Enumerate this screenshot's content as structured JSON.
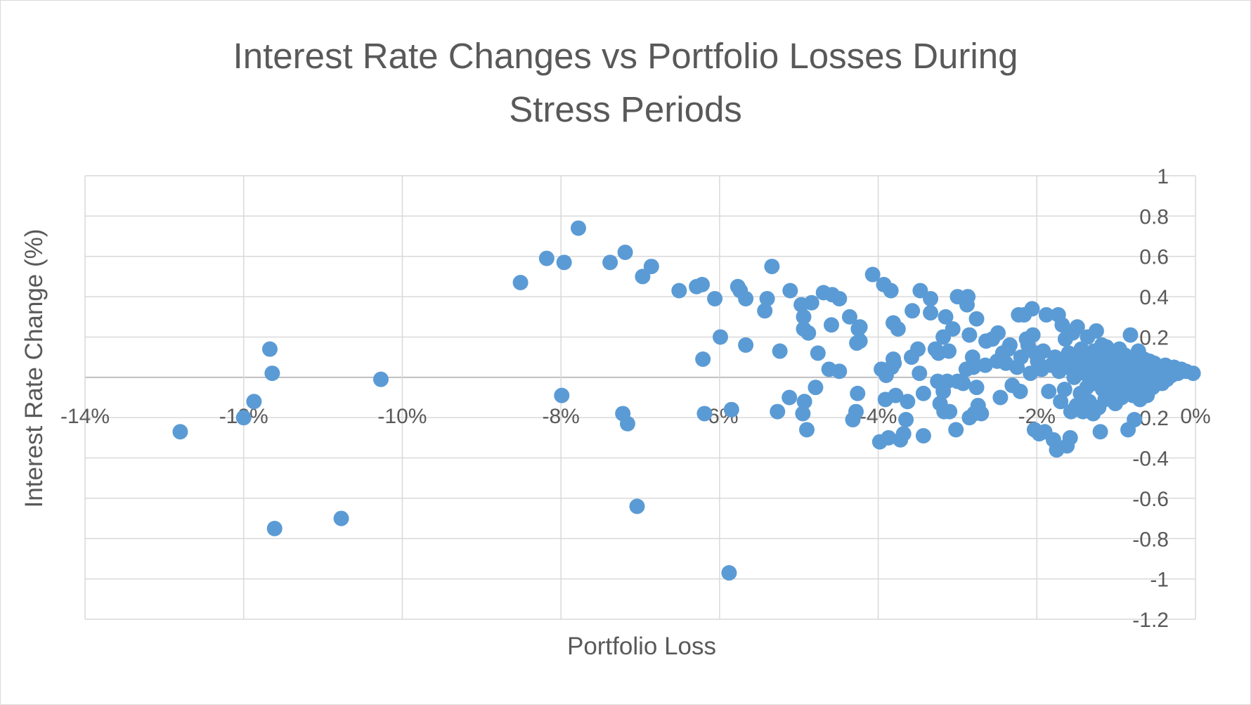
{
  "chart_data": {
    "type": "scatter",
    "title_lines": [
      "Interest Rate Changes vs Portfolio Losses During",
      "Stress Periods"
    ],
    "xlabel": "Portfolio Loss",
    "ylabel": "Interest Rate Change (%)",
    "xlim": [
      -0.14,
      0.0
    ],
    "ylim": [
      -1.2,
      1.0
    ],
    "x_ticks": [
      -0.14,
      -0.12,
      -0.1,
      -0.08,
      -0.06,
      -0.04,
      -0.02,
      0.0
    ],
    "x_tick_labels": [
      "-14%",
      "-12%",
      "-10%",
      "-8%",
      "-6%",
      "-4%",
      "-2%",
      "0%"
    ],
    "y_ticks": [
      1,
      0.8,
      0.6,
      0.4,
      0.2,
      0,
      -0.2,
      -0.4,
      -0.6,
      -0.8,
      -1,
      -1.2
    ],
    "y_tick_labels": [
      "1",
      "0.8",
      "0.6",
      "0.4",
      "0.2",
      "0",
      "-0.2",
      "-0.4",
      "-0.6",
      "-0.8",
      "-1",
      "-1.2"
    ],
    "grid": true,
    "marker_color": "#5b9bd5",
    "points": [
      [
        -0.128,
        -0.27
      ],
      [
        -0.12,
        -0.2
      ],
      [
        -0.1187,
        -0.12
      ],
      [
        -0.1167,
        0.14
      ],
      [
        -0.1164,
        0.02
      ],
      [
        -0.1161,
        -0.75
      ],
      [
        -0.1077,
        -0.7
      ],
      [
        -0.1027,
        -0.01
      ],
      [
        -0.0851,
        0.47
      ],
      [
        -0.0818,
        0.59
      ],
      [
        -0.0799,
        -0.09
      ],
      [
        -0.0796,
        0.57
      ],
      [
        -0.0778,
        0.74
      ],
      [
        -0.0738,
        0.57
      ],
      [
        -0.0722,
        -0.18
      ],
      [
        -0.0719,
        0.62
      ],
      [
        -0.0716,
        -0.23
      ],
      [
        -0.0704,
        -0.64
      ],
      [
        -0.0697,
        0.5
      ],
      [
        -0.0686,
        0.55
      ],
      [
        -0.0651,
        0.43
      ],
      [
        -0.0629,
        0.45
      ],
      [
        -0.0622,
        0.46
      ],
      [
        -0.0621,
        0.09
      ],
      [
        -0.0619,
        -0.18
      ],
      [
        -0.0606,
        0.39
      ],
      [
        -0.0599,
        0.2
      ],
      [
        -0.0588,
        -0.97
      ],
      [
        -0.0585,
        -0.16
      ],
      [
        -0.0577,
        0.45
      ],
      [
        -0.0574,
        0.43
      ],
      [
        -0.0567,
        0.39
      ],
      [
        -0.0567,
        0.16
      ],
      [
        -0.0543,
        0.33
      ],
      [
        -0.054,
        0.39
      ],
      [
        -0.0534,
        0.55
      ],
      [
        -0.0527,
        -0.17
      ],
      [
        -0.0524,
        0.13
      ],
      [
        -0.0512,
        -0.1
      ],
      [
        -0.0511,
        0.43
      ],
      [
        -0.0497,
        0.36
      ],
      [
        -0.0493,
        -0.12
      ],
      [
        -0.0495,
        -0.18
      ],
      [
        -0.0494,
        0.24
      ],
      [
        -0.0494,
        0.3
      ],
      [
        -0.049,
        -0.26
      ],
      [
        -0.0488,
        0.22
      ],
      [
        -0.0484,
        0.37
      ],
      [
        -0.0479,
        -0.05
      ],
      [
        -0.0476,
        0.12
      ],
      [
        -0.0469,
        0.42
      ],
      [
        -0.0462,
        0.04
      ],
      [
        -0.0459,
        0.26
      ],
      [
        -0.0458,
        0.41
      ],
      [
        -0.0449,
        0.39
      ],
      [
        -0.0449,
        0.03
      ],
      [
        -0.0436,
        0.3
      ],
      [
        -0.0432,
        -0.21
      ],
      [
        -0.0428,
        -0.17
      ],
      [
        -0.0427,
        0.17
      ],
      [
        -0.0426,
        -0.08
      ],
      [
        -0.0425,
        0.24
      ],
      [
        -0.0423,
        0.18
      ],
      [
        -0.0423,
        0.25
      ],
      [
        -0.0407,
        0.51
      ],
      [
        -0.0398,
        -0.32
      ],
      [
        -0.0396,
        0.04
      ],
      [
        -0.0393,
        0.46
      ],
      [
        -0.0391,
        -0.11
      ],
      [
        -0.039,
        0.01
      ],
      [
        -0.0387,
        -0.3
      ],
      [
        -0.0384,
        0.43
      ],
      [
        -0.0383,
        0.05
      ],
      [
        -0.0381,
        0.09
      ],
      [
        -0.0381,
        0.27
      ],
      [
        -0.038,
        0.07
      ],
      [
        -0.0378,
        -0.09
      ],
      [
        -0.0375,
        0.24
      ],
      [
        -0.0372,
        -0.31
      ],
      [
        -0.0368,
        -0.28
      ],
      [
        -0.0365,
        -0.21
      ],
      [
        -0.0363,
        -0.12
      ],
      [
        -0.0358,
        0.1
      ],
      [
        -0.0357,
        0.33
      ],
      [
        -0.035,
        0.14
      ],
      [
        -0.0348,
        0.02
      ],
      [
        -0.0347,
        0.43
      ],
      [
        -0.0343,
        -0.08
      ],
      [
        -0.0343,
        -0.29
      ],
      [
        -0.0334,
        0.32
      ],
      [
        -0.0334,
        0.39
      ],
      [
        -0.0328,
        0.14
      ],
      [
        -0.0325,
        -0.02
      ],
      [
        -0.0324,
        0.12
      ],
      [
        -0.0322,
        -0.13
      ],
      [
        -0.0318,
        0.2
      ],
      [
        -0.0318,
        -0.07
      ],
      [
        -0.0317,
        -0.17
      ],
      [
        -0.0315,
        0.3
      ],
      [
        -0.0313,
        -0.02
      ],
      [
        -0.0311,
        0.13
      ],
      [
        -0.031,
        -0.17
      ],
      [
        -0.0306,
        0.24
      ],
      [
        -0.0302,
        -0.26
      ],
      [
        -0.03,
        0.4
      ],
      [
        -0.03,
        -0.02
      ],
      [
        -0.0293,
        -0.03
      ],
      [
        -0.0289,
        0.04
      ],
      [
        -0.0288,
        0.36
      ],
      [
        -0.0287,
        0.4
      ],
      [
        -0.0285,
        0.21
      ],
      [
        -0.0285,
        -0.2
      ],
      [
        -0.0281,
        0.1
      ],
      [
        -0.028,
        0.05
      ],
      [
        -0.0279,
        -0.18
      ],
      [
        -0.0276,
        0.29
      ],
      [
        -0.0276,
        -0.05
      ],
      [
        -0.0274,
        -0.14
      ],
      [
        -0.027,
        -0.18
      ],
      [
        -0.0265,
        0.06
      ],
      [
        -0.0264,
        0.18
      ],
      [
        -0.0256,
        0.19
      ],
      [
        -0.025,
        0.08
      ],
      [
        -0.0249,
        0.22
      ],
      [
        -0.0246,
        -0.1
      ],
      [
        -0.0243,
        0.12
      ],
      [
        -0.0239,
        0.07
      ],
      [
        -0.0236,
        0.14
      ],
      [
        -0.0234,
        0.16
      ],
      [
        -0.0231,
        -0.04
      ],
      [
        -0.0225,
        0.05
      ],
      [
        -0.0223,
        0.31
      ],
      [
        -0.0221,
        -0.07
      ],
      [
        -0.022,
        0.1
      ],
      [
        -0.0216,
        0.31
      ],
      [
        -0.0213,
        0.19
      ],
      [
        -0.0211,
        0.16
      ],
      [
        -0.0208,
        0.02
      ],
      [
        -0.0206,
        0.34
      ],
      [
        -0.0205,
        0.21
      ],
      [
        -0.0203,
        -0.26
      ],
      [
        -0.0202,
        0.12
      ],
      [
        -0.0199,
        0.08
      ],
      [
        -0.0197,
        -0.28
      ],
      [
        -0.0194,
        0.04
      ],
      [
        -0.0192,
        0.13
      ],
      [
        -0.019,
        -0.27
      ],
      [
        -0.0188,
        0.31
      ],
      [
        -0.0185,
        -0.07
      ],
      [
        -0.0182,
        0.06
      ],
      [
        -0.0179,
        -0.31
      ],
      [
        -0.0177,
        0.1
      ],
      [
        -0.0175,
        -0.36
      ],
      [
        -0.0173,
        0.31
      ],
      [
        -0.0172,
        0.03
      ],
      [
        -0.017,
        -0.12
      ],
      [
        -0.0168,
        0.26
      ],
      [
        -0.0167,
        0.07
      ],
      [
        -0.0165,
        -0.06
      ],
      [
        -0.0164,
        0.19
      ],
      [
        -0.0162,
        -0.34
      ],
      [
        -0.0161,
        0.05
      ],
      [
        -0.016,
        0.12
      ],
      [
        -0.0158,
        -0.3
      ],
      [
        -0.0157,
        -0.17
      ],
      [
        -0.0155,
        0.22
      ],
      [
        -0.0153,
        0.0
      ],
      [
        -0.0152,
        0.08
      ],
      [
        -0.015,
        -0.14
      ],
      [
        -0.0149,
        0.25
      ],
      [
        -0.0147,
        0.04
      ],
      [
        -0.0145,
        -0.08
      ],
      [
        -0.0144,
        0.14
      ],
      [
        -0.0142,
        -0.17
      ],
      [
        -0.014,
        0.02
      ],
      [
        -0.0139,
        0.1
      ],
      [
        -0.0137,
        -0.05
      ],
      [
        -0.0136,
        0.2
      ],
      [
        -0.0134,
        -0.12
      ],
      [
        -0.0133,
        0.06
      ],
      [
        -0.0131,
        0.0
      ],
      [
        -0.0129,
        -0.18
      ],
      [
        -0.0128,
        0.13
      ],
      [
        -0.0126,
        -0.03
      ],
      [
        -0.0125,
        0.23
      ],
      [
        -0.0124,
        0.09
      ],
      [
        -0.0122,
        -0.15
      ],
      [
        -0.0121,
        0.04
      ],
      [
        -0.012,
        -0.27
      ],
      [
        -0.0118,
        0.16
      ],
      [
        -0.0117,
        -0.06
      ],
      [
        -0.0116,
        0.01
      ],
      [
        -0.0114,
        -0.11
      ],
      [
        -0.0113,
        0.07
      ],
      [
        -0.0112,
        0.15
      ],
      [
        -0.011,
        -0.02
      ],
      [
        -0.0109,
        0.1
      ],
      [
        -0.0108,
        -0.08
      ],
      [
        -0.0106,
        0.03
      ],
      [
        -0.0105,
        0.12
      ],
      [
        -0.0104,
        -0.04
      ],
      [
        -0.0102,
        0.06
      ],
      [
        -0.0101,
        -0.13
      ],
      [
        -0.01,
        0.0
      ],
      [
        -0.0098,
        0.09
      ],
      [
        -0.0097,
        -0.06
      ],
      [
        -0.0096,
        0.14
      ],
      [
        -0.0094,
        0.02
      ],
      [
        -0.0093,
        -0.1
      ],
      [
        -0.0092,
        0.05
      ],
      [
        -0.009,
        -0.02
      ],
      [
        -0.0089,
        0.11
      ],
      [
        -0.0088,
        -0.07
      ],
      [
        -0.0086,
        0.03
      ],
      [
        -0.0085,
        -0.26
      ],
      [
        -0.0084,
        0.08
      ],
      [
        -0.0083,
        -0.01
      ],
      [
        -0.0082,
        0.21
      ],
      [
        -0.0081,
        -0.04
      ],
      [
        -0.008,
        0.06
      ],
      [
        -0.0079,
        -0.09
      ],
      [
        -0.0078,
        0.01
      ],
      [
        -0.0077,
        -0.21
      ],
      [
        -0.0076,
        0.1
      ],
      [
        -0.0075,
        -0.03
      ],
      [
        -0.0074,
        0.04
      ],
      [
        -0.0073,
        -0.06
      ],
      [
        -0.0072,
        0.13
      ],
      [
        -0.0071,
        0.0
      ],
      [
        -0.007,
        -0.11
      ],
      [
        -0.0069,
        0.07
      ],
      [
        -0.0068,
        -0.02
      ],
      [
        -0.0067,
        0.03
      ],
      [
        -0.0066,
        -0.07
      ],
      [
        -0.0065,
        0.09
      ],
      [
        -0.0064,
        0.01
      ],
      [
        -0.0063,
        -0.04
      ],
      [
        -0.0062,
        0.05
      ],
      [
        -0.0061,
        -0.09
      ],
      [
        -0.006,
        0.02
      ],
      [
        -0.0058,
        0.08
      ],
      [
        -0.0057,
        -0.01
      ],
      [
        -0.0055,
        0.04
      ],
      [
        -0.0054,
        -0.05
      ],
      [
        -0.0052,
        0.07
      ],
      [
        -0.005,
        -0.02
      ],
      [
        -0.0048,
        0.03
      ],
      [
        -0.0046,
        0.0
      ],
      [
        -0.0044,
        0.05
      ],
      [
        -0.0042,
        -0.03
      ],
      [
        -0.004,
        0.02
      ],
      [
        -0.0038,
        0.06
      ],
      [
        -0.0036,
        -0.01
      ],
      [
        -0.0033,
        0.03
      ],
      [
        -0.003,
        0.01
      ],
      [
        -0.0027,
        0.05
      ],
      [
        -0.0022,
        0.02
      ],
      [
        -0.0018,
        0.04
      ],
      [
        -0.0012,
        0.03
      ],
      [
        -0.0003,
        0.02
      ]
    ]
  }
}
